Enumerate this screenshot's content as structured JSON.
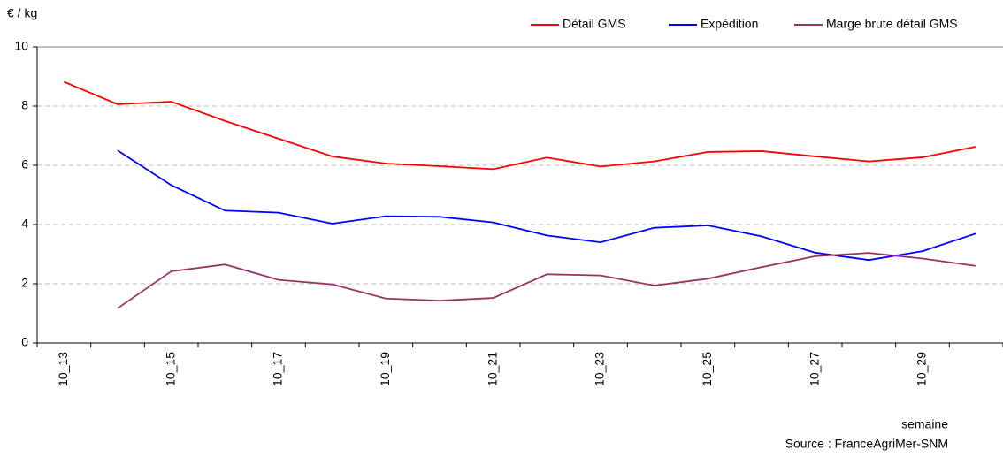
{
  "chart_data": {
    "type": "line",
    "y_label": "€ / kg",
    "x_label": "semaine",
    "source": "Source : FranceAgriMer-SNM",
    "categories": [
      "10_13",
      null,
      "10_15",
      null,
      "10_17",
      null,
      "10_19",
      null,
      "10_21",
      null,
      "10_23",
      null,
      "10_25",
      null,
      "10_27",
      null,
      "10_29",
      null
    ],
    "series": [
      {
        "name": "Détail GMS",
        "color": "#ff0000",
        "values": [
          8.82,
          8.06,
          8.15,
          7.5,
          6.9,
          6.3,
          6.06,
          5.97,
          5.87,
          6.26,
          5.96,
          6.13,
          6.45,
          6.48,
          6.3,
          6.13,
          6.27,
          6.63
        ]
      },
      {
        "name": "Expédition",
        "color": "#0000ff",
        "values": [
          null,
          6.5,
          5.33,
          4.47,
          4.4,
          4.03,
          4.28,
          4.26,
          4.07,
          3.63,
          3.4,
          3.89,
          3.97,
          3.6,
          3.05,
          2.8,
          3.1,
          3.7
        ]
      },
      {
        "name": "Marge brute détail GMS",
        "color": "#993366",
        "values": [
          null,
          1.17,
          2.42,
          2.65,
          2.13,
          1.98,
          1.5,
          1.43,
          1.52,
          2.32,
          2.28,
          1.94,
          2.17,
          2.56,
          2.93,
          3.04,
          2.85,
          2.6
        ]
      }
    ],
    "ylim": [
      0,
      10
    ],
    "yticks": [
      0,
      2,
      4,
      6,
      8,
      10
    ],
    "grid": true
  }
}
